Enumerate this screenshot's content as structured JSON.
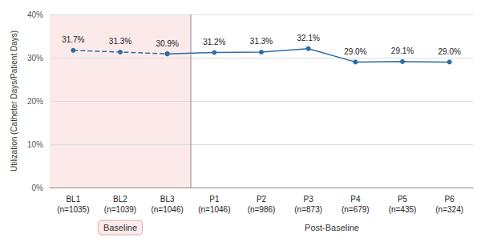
{
  "chart_data": {
    "type": "line",
    "categories": [
      "BL1\n(n=1035)",
      "BL2\n(n=1039)",
      "BL3\n(n=1046)",
      "P1\n(n=1046)",
      "P2\n(n=986)",
      "P3\n(n=873)",
      "P4\n(n=679)",
      "P5\n(n=435)",
      "P6\n(n=324)"
    ],
    "values": [
      31.7,
      31.3,
      30.9,
      31.2,
      31.3,
      32.1,
      29.0,
      29.1,
      29.0
    ],
    "value_labels": [
      "31.7%",
      "31.3%",
      "30.9%",
      "31.2%",
      "31.3%",
      "32.1%",
      "29.0%",
      "29.1%",
      "29.0%"
    ],
    "data_labels": true,
    "color": "#2E6DA4",
    "marker": "circle",
    "ylabel": "Utilization (Catheter Days/Patient Days)",
    "ylim": [
      0,
      40
    ],
    "yticks": [
      {
        "value": 0,
        "label": "0%"
      },
      {
        "value": 10,
        "label": "10%"
      },
      {
        "value": 20,
        "label": "20%"
      },
      {
        "value": 30,
        "label": "30%"
      },
      {
        "value": 40,
        "label": "40%"
      }
    ],
    "grid": true,
    "annotations": [
      {
        "text": "Baseline",
        "from": "BL1\n(n=1035)",
        "to": "BL3\n(n=1046)",
        "line_style": "dashed",
        "color": "#FCEAEA"
      },
      {
        "text": "Post-Baseline",
        "from": "P1\n(n=1046)",
        "to": "P6\n(n=324)",
        "line_style": "solid"
      }
    ]
  }
}
